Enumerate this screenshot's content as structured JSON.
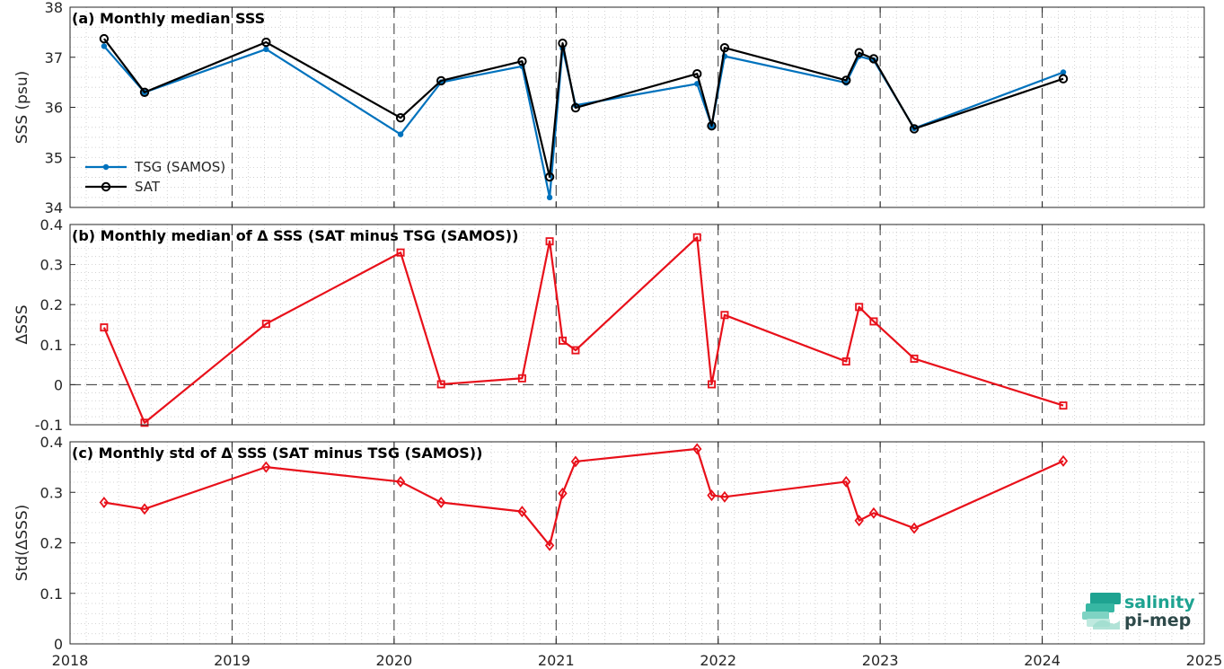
{
  "x_ticks": [
    "2018",
    "2019",
    "2020",
    "2021",
    "2022",
    "2023",
    "2024",
    "2025"
  ],
  "colors": {
    "tsg": "#0072bd",
    "sat": "#000000",
    "delta": "#e8101a",
    "logo_teal": "#1ea391",
    "logo_dark": "#2e4a4a"
  },
  "logo": {
    "line1": "salinity",
    "line2": "pi-mep"
  },
  "chart_data": [
    {
      "type": "line",
      "title": "(a) Monthly median SSS",
      "ylabel": "SSS (psu)",
      "xlim": [
        2018,
        2025
      ],
      "ylim": [
        34,
        38
      ],
      "y_ticks": [
        "34",
        "35",
        "36",
        "37",
        "38"
      ],
      "grid": true,
      "legend": "lower-left",
      "series": [
        {
          "name": "TSG (SAMOS)",
          "marker": "dot",
          "x": [
            2018.21,
            2018.46,
            2019.21,
            2020.04,
            2020.29,
            2020.79,
            2020.96,
            2021.04,
            2021.12,
            2021.87,
            2021.96,
            2022.04,
            2022.79,
            2022.87,
            2022.96,
            2023.21,
            2024.13
          ],
          "y": [
            37.22,
            36.3,
            37.16,
            35.46,
            36.5,
            36.82,
            34.2,
            37.18,
            36.04,
            36.47,
            35.63,
            37.02,
            36.49,
            37.02,
            36.94,
            35.58,
            36.7
          ]
        },
        {
          "name": "SAT",
          "marker": "circle",
          "x": [
            2018.21,
            2018.46,
            2019.21,
            2020.04,
            2020.29,
            2020.79,
            2020.96,
            2021.04,
            2021.12,
            2021.87,
            2021.96,
            2022.04,
            2022.79,
            2022.87,
            2022.96,
            2023.21,
            2024.13
          ],
          "y": [
            37.37,
            36.3,
            37.3,
            35.79,
            36.53,
            36.92,
            34.61,
            37.28,
            35.99,
            36.67,
            35.63,
            37.19,
            36.54,
            37.09,
            36.97,
            35.57,
            36.57
          ]
        }
      ]
    },
    {
      "type": "line",
      "title": "(b) Monthly median of Δ SSS (SAT minus TSG (SAMOS))",
      "ylabel": "ΔSSS",
      "xlim": [
        2018,
        2025
      ],
      "ylim": [
        -0.1,
        0.4
      ],
      "y_ticks": [
        "-0.1",
        "0",
        "0.1",
        "0.2",
        "0.3",
        "0.4"
      ],
      "grid": true,
      "zero_line": true,
      "series": [
        {
          "marker": "square",
          "x": [
            2018.21,
            2018.46,
            2019.21,
            2020.04,
            2020.29,
            2020.79,
            2020.96,
            2021.04,
            2021.12,
            2021.87,
            2021.96,
            2022.04,
            2022.79,
            2022.87,
            2022.96,
            2023.21,
            2024.13
          ],
          "y": [
            0.143,
            -0.095,
            0.152,
            0.33,
            0.001,
            0.016,
            0.358,
            0.11,
            0.086,
            0.368,
            0.001,
            0.174,
            0.058,
            0.194,
            0.158,
            0.065,
            -0.052
          ]
        }
      ]
    },
    {
      "type": "line",
      "title": "(c) Monthly std of Δ SSS (SAT minus TSG (SAMOS))",
      "ylabel": "Std(ΔSSS)",
      "xlim": [
        2018,
        2025
      ],
      "ylim": [
        0,
        0.4
      ],
      "y_ticks": [
        "0",
        "0.1",
        "0.2",
        "0.3",
        "0.4"
      ],
      "grid": true,
      "series": [
        {
          "marker": "diamond",
          "x": [
            2018.21,
            2018.46,
            2019.21,
            2020.04,
            2020.29,
            2020.79,
            2020.96,
            2021.04,
            2021.12,
            2021.87,
            2021.96,
            2022.04,
            2022.79,
            2022.87,
            2022.96,
            2023.21,
            2024.13
          ],
          "y": [
            0.28,
            0.267,
            0.35,
            0.321,
            0.28,
            0.262,
            0.195,
            0.298,
            0.361,
            0.386,
            0.294,
            0.291,
            0.321,
            0.244,
            0.259,
            0.229,
            0.362
          ]
        }
      ]
    }
  ]
}
